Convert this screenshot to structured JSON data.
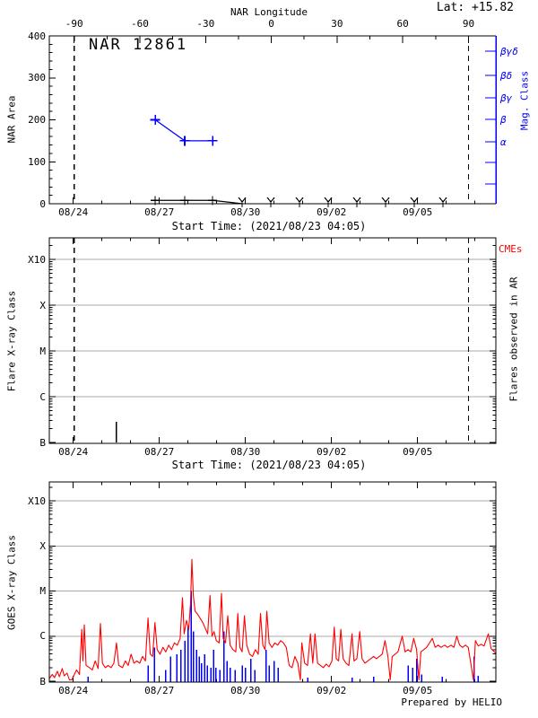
{
  "header": {
    "lat_label": "Lat: +15.82",
    "title": "NAR 12861",
    "prepared_by": "Prepared by HELIO"
  },
  "colors": {
    "accent_blue": "#0000ff",
    "series_red": "#ff0000",
    "grid_gray": "#a9a9a9",
    "black": "#000000",
    "background": "#ffffff"
  },
  "time_axis": {
    "start_time_label": "Start Time: (2021/08/23 04:05)",
    "tick_labels": [
      "08/24",
      "08/27",
      "08/30",
      "09/02",
      "09/05"
    ],
    "tick_days": [
      0.833,
      3.833,
      6.833,
      9.833,
      12.833
    ],
    "minor_tick_step_days": 1,
    "range_days": [
      0,
      15.56
    ]
  },
  "chart_data": [
    {
      "type": "line",
      "title": "NAR 12861",
      "ylabel": "NAR Area",
      "ylim": [
        0,
        400
      ],
      "yticks": [
        0,
        100,
        200,
        300,
        400
      ],
      "y_minor_step": 20,
      "top_axis": {
        "label": "NAR Longitude",
        "tick_values": [
          -90,
          -60,
          -30,
          0,
          30,
          60,
          90
        ],
        "tick_days": [
          0.866,
          3.156,
          5.447,
          7.737,
          10.028,
          12.318,
          14.609
        ]
      },
      "right_axis": {
        "label": "Mag. Class",
        "class_labels": [
          "βγδ",
          "βδ",
          "βγ",
          "β",
          "α"
        ],
        "color": "#0000ff"
      },
      "limb_crossing_days": [
        0.866,
        14.609
      ],
      "series": [
        {
          "name": "nar-area",
          "color": "#0000ff",
          "marker": "plus",
          "x_days": [
            3.69,
            4.72,
            5.69
          ],
          "values": [
            200,
            150,
            150
          ]
        },
        {
          "name": "nar-area-secondary",
          "color": "#000000",
          "marker": "plus",
          "x_days": [
            3.69,
            4.72,
            5.69,
            6.35,
            6.72
          ],
          "values": [
            8,
            8,
            8,
            3,
            0
          ],
          "marker_points": 3
        }
      ],
      "star_marker_days": [
        6.72,
        7.72,
        8.72,
        9.72,
        10.72,
        11.72,
        12.72,
        13.72
      ]
    },
    {
      "type": "bar",
      "ylabel": "Flare X-ray Class",
      "yticks": [
        "B",
        "C",
        "M",
        "X",
        "X10"
      ],
      "right_label": "Flares observed in AR",
      "cme_label": "CMEs",
      "flares": [
        {
          "day": 2.34,
          "class": "B5",
          "level_decades_above_B": 0.45
        }
      ]
    },
    {
      "type": "line",
      "ylabel": "GOES X-ray Class",
      "yticks": [
        "B",
        "C",
        "M",
        "X",
        "X10"
      ],
      "flux_units": "decades above GOES class B1",
      "flux_series": {
        "name": "goes-xray-flux",
        "color": "#ff0000",
        "points": [
          [
            0.0,
            0.06
          ],
          [
            0.1,
            0.15
          ],
          [
            0.18,
            0.08
          ],
          [
            0.28,
            0.22
          ],
          [
            0.35,
            0.1
          ],
          [
            0.45,
            0.28
          ],
          [
            0.52,
            0.12
          ],
          [
            0.62,
            0.18
          ],
          [
            0.7,
            0.03
          ],
          [
            0.78,
            0.03
          ],
          [
            0.85,
            0.12
          ],
          [
            0.95,
            0.25
          ],
          [
            1.05,
            0.15
          ],
          [
            1.13,
            1.15
          ],
          [
            1.17,
            0.45
          ],
          [
            1.22,
            1.25
          ],
          [
            1.28,
            0.35
          ],
          [
            1.4,
            0.3
          ],
          [
            1.5,
            0.25
          ],
          [
            1.6,
            0.45
          ],
          [
            1.7,
            0.28
          ],
          [
            1.78,
            1.28
          ],
          [
            1.85,
            0.4
          ],
          [
            1.95,
            0.3
          ],
          [
            2.05,
            0.35
          ],
          [
            2.15,
            0.3
          ],
          [
            2.25,
            0.4
          ],
          [
            2.34,
            0.85
          ],
          [
            2.42,
            0.35
          ],
          [
            2.55,
            0.3
          ],
          [
            2.65,
            0.45
          ],
          [
            2.75,
            0.35
          ],
          [
            2.85,
            0.6
          ],
          [
            2.95,
            0.4
          ],
          [
            3.05,
            0.45
          ],
          [
            3.15,
            0.4
          ],
          [
            3.25,
            0.55
          ],
          [
            3.35,
            0.45
          ],
          [
            3.44,
            1.4
          ],
          [
            3.52,
            0.6
          ],
          [
            3.6,
            0.55
          ],
          [
            3.68,
            1.3
          ],
          [
            3.76,
            0.7
          ],
          [
            3.86,
            0.6
          ],
          [
            3.96,
            0.75
          ],
          [
            4.06,
            0.65
          ],
          [
            4.16,
            0.8
          ],
          [
            4.26,
            0.7
          ],
          [
            4.36,
            0.85
          ],
          [
            4.46,
            0.8
          ],
          [
            4.56,
            0.95
          ],
          [
            4.64,
            1.85
          ],
          [
            4.7,
            1.05
          ],
          [
            4.78,
            1.35
          ],
          [
            4.86,
            1.15
          ],
          [
            4.92,
            1.7
          ],
          [
            4.97,
            2.7
          ],
          [
            5.02,
            1.9
          ],
          [
            5.08,
            1.55
          ],
          [
            5.15,
            1.5
          ],
          [
            5.25,
            1.4
          ],
          [
            5.35,
            1.3
          ],
          [
            5.45,
            1.15
          ],
          [
            5.52,
            1.05
          ],
          [
            5.6,
            1.9
          ],
          [
            5.67,
            1.0
          ],
          [
            5.74,
            1.1
          ],
          [
            5.82,
            0.9
          ],
          [
            5.92,
            0.85
          ],
          [
            6.0,
            1.95
          ],
          [
            6.06,
            0.95
          ],
          [
            6.14,
            0.85
          ],
          [
            6.22,
            1.45
          ],
          [
            6.3,
            0.8
          ],
          [
            6.4,
            0.7
          ],
          [
            6.5,
            0.65
          ],
          [
            6.57,
            1.5
          ],
          [
            6.64,
            0.75
          ],
          [
            6.72,
            0.65
          ],
          [
            6.8,
            1.45
          ],
          [
            6.88,
            0.8
          ],
          [
            6.98,
            0.6
          ],
          [
            7.08,
            0.55
          ],
          [
            7.18,
            0.7
          ],
          [
            7.28,
            0.6
          ],
          [
            7.36,
            1.5
          ],
          [
            7.44,
            0.8
          ],
          [
            7.52,
            0.7
          ],
          [
            7.58,
            1.55
          ],
          [
            7.66,
            0.85
          ],
          [
            7.76,
            0.75
          ],
          [
            7.86,
            0.85
          ],
          [
            7.96,
            0.8
          ],
          [
            8.06,
            0.9
          ],
          [
            8.16,
            0.85
          ],
          [
            8.26,
            0.75
          ],
          [
            8.36,
            0.35
          ],
          [
            8.46,
            0.3
          ],
          [
            8.56,
            0.55
          ],
          [
            8.66,
            0.4
          ],
          [
            8.75,
            0.03
          ],
          [
            8.8,
            0.85
          ],
          [
            8.9,
            0.4
          ],
          [
            9.0,
            0.35
          ],
          [
            9.1,
            1.05
          ],
          [
            9.18,
            0.4
          ],
          [
            9.26,
            1.05
          ],
          [
            9.35,
            0.4
          ],
          [
            9.45,
            0.35
          ],
          [
            9.55,
            0.3
          ],
          [
            9.65,
            0.38
          ],
          [
            9.75,
            0.32
          ],
          [
            9.85,
            0.45
          ],
          [
            9.93,
            1.2
          ],
          [
            10.0,
            0.5
          ],
          [
            10.08,
            0.45
          ],
          [
            10.16,
            1.15
          ],
          [
            10.24,
            0.5
          ],
          [
            10.34,
            0.4
          ],
          [
            10.44,
            0.35
          ],
          [
            10.55,
            1.05
          ],
          [
            10.62,
            0.45
          ],
          [
            10.72,
            0.5
          ],
          [
            10.82,
            1.1
          ],
          [
            10.9,
            0.5
          ],
          [
            11.0,
            0.4
          ],
          [
            11.1,
            0.45
          ],
          [
            11.2,
            0.5
          ],
          [
            11.3,
            0.55
          ],
          [
            11.4,
            0.5
          ],
          [
            11.5,
            0.55
          ],
          [
            11.6,
            0.6
          ],
          [
            11.7,
            0.9
          ],
          [
            11.8,
            0.55
          ],
          [
            11.88,
            0.03
          ],
          [
            11.95,
            0.55
          ],
          [
            12.05,
            0.6
          ],
          [
            12.15,
            0.65
          ],
          [
            12.3,
            1.0
          ],
          [
            12.4,
            0.65
          ],
          [
            12.5,
            0.7
          ],
          [
            12.6,
            0.65
          ],
          [
            12.7,
            0.95
          ],
          [
            12.8,
            0.7
          ],
          [
            12.88,
            0.03
          ],
          [
            12.95,
            0.65
          ],
          [
            13.05,
            0.7
          ],
          [
            13.15,
            0.75
          ],
          [
            13.35,
            0.95
          ],
          [
            13.45,
            0.75
          ],
          [
            13.55,
            0.8
          ],
          [
            13.65,
            0.75
          ],
          [
            13.78,
            0.8
          ],
          [
            13.88,
            0.75
          ],
          [
            14.0,
            0.8
          ],
          [
            14.1,
            0.75
          ],
          [
            14.2,
            1.0
          ],
          [
            14.3,
            0.8
          ],
          [
            14.4,
            0.75
          ],
          [
            14.5,
            0.8
          ],
          [
            14.6,
            0.75
          ],
          [
            14.78,
            0.03
          ],
          [
            14.85,
            0.9
          ],
          [
            14.95,
            0.78
          ],
          [
            15.05,
            0.82
          ],
          [
            15.15,
            0.78
          ],
          [
            15.3,
            1.05
          ],
          [
            15.4,
            0.72
          ],
          [
            15.56,
            0.62
          ]
        ]
      },
      "ar_flare_bars": {
        "name": "ar-flares",
        "color": "#0000ff",
        "points": [
          [
            1.35,
            0.1
          ],
          [
            3.44,
            0.35
          ],
          [
            3.66,
            0.75
          ],
          [
            4.06,
            0.25
          ],
          [
            4.22,
            0.55
          ],
          [
            4.44,
            0.6
          ],
          [
            4.59,
            0.7
          ],
          [
            4.72,
            0.9
          ],
          [
            4.84,
            1.2
          ],
          [
            4.94,
            2.0
          ],
          [
            5.03,
            1.1
          ],
          [
            5.13,
            0.7
          ],
          [
            5.22,
            0.55
          ],
          [
            5.31,
            0.4
          ],
          [
            5.41,
            0.6
          ],
          [
            5.5,
            0.35
          ],
          [
            5.63,
            0.3
          ],
          [
            5.72,
            0.7
          ],
          [
            5.81,
            0.3
          ],
          [
            5.94,
            0.25
          ],
          [
            6.09,
            1.1
          ],
          [
            6.19,
            0.45
          ],
          [
            6.31,
            0.3
          ],
          [
            6.47,
            0.25
          ],
          [
            6.72,
            0.35
          ],
          [
            6.84,
            0.3
          ],
          [
            7.03,
            0.5
          ],
          [
            7.16,
            0.25
          ],
          [
            7.56,
            0.7
          ],
          [
            7.66,
            0.35
          ],
          [
            7.84,
            0.45
          ],
          [
            7.97,
            0.3
          ],
          [
            9.0,
            0.08
          ],
          [
            10.55,
            0.08
          ],
          [
            11.3,
            0.1
          ],
          [
            12.5,
            0.35
          ],
          [
            12.66,
            0.3
          ],
          [
            12.8,
            0.5
          ],
          [
            12.97,
            0.15
          ],
          [
            13.7,
            0.1
          ],
          [
            14.8,
            0.55
          ],
          [
            14.95,
            0.12
          ]
        ]
      }
    }
  ]
}
